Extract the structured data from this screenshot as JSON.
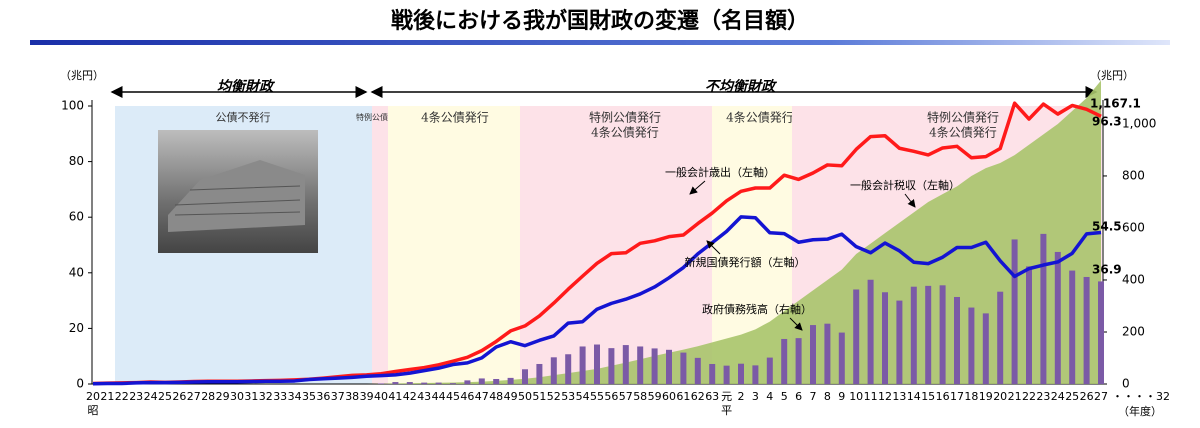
{
  "chart_data": {
    "type": "combo",
    "title": "戦後における我が国財政の変遷（名目額）",
    "left_unit": "（兆円）",
    "right_unit": "（兆円）",
    "x_unit": "（年度）",
    "era_labels": [
      "昭",
      "平"
    ],
    "axis_extension": "・・・・32",
    "periods": [
      {
        "label": "均衡財政"
      },
      {
        "label": "不均衡財政"
      }
    ],
    "bands": [
      {
        "lines": [
          "公債不発行"
        ]
      },
      {
        "lines": [
          "特例公債発行"
        ]
      },
      {
        "lines": [
          "4条公債発行"
        ]
      },
      {
        "lines": [
          "特例公債発行",
          "4条公債発行"
        ]
      },
      {
        "lines": [
          "4条公債発行"
        ]
      },
      {
        "lines": [
          "特例公債発行",
          "4条公債発行"
        ]
      }
    ],
    "categories": [
      "20",
      "21",
      "22",
      "23",
      "24",
      "25",
      "26",
      "27",
      "28",
      "29",
      "30",
      "31",
      "32",
      "33",
      "34",
      "35",
      "36",
      "37",
      "38",
      "39",
      "40",
      "41",
      "42",
      "43",
      "44",
      "45",
      "46",
      "47",
      "48",
      "49",
      "50",
      "51",
      "52",
      "53",
      "54",
      "55",
      "56",
      "57",
      "58",
      "59",
      "60",
      "61",
      "62",
      "63",
      "元",
      "2",
      "3",
      "4",
      "5",
      "6",
      "7",
      "8",
      "9",
      "10",
      "11",
      "12",
      "13",
      "14",
      "15",
      "16",
      "17",
      "18",
      "19",
      "20",
      "21",
      "22",
      "23",
      "24",
      "25",
      "26",
      "27"
    ],
    "ylim": [
      0,
      100
    ],
    "yticks": [
      0,
      20,
      40,
      60,
      80,
      100
    ],
    "y2lim": [
      0,
      1069
    ],
    "y2ticks": [
      0,
      200,
      400,
      600,
      800,
      {
        "value": 1000,
        "label": "1,000"
      }
    ],
    "series": [
      {
        "name": "一般会計歳出（左軸）",
        "type": "line",
        "color": "#ff1a1a",
        "values": [
          0.2,
          0.3,
          0.4,
          0.5,
          0.7,
          0.6,
          0.7,
          0.9,
          1.0,
          1.0,
          1.0,
          1.1,
          1.2,
          1.3,
          1.5,
          1.7,
          2.1,
          2.6,
          3.1,
          3.3,
          3.7,
          4.5,
          5.2,
          5.9,
          6.9,
          8.2,
          9.6,
          12.0,
          15.3,
          19.1,
          20.9,
          24.5,
          29.1,
          34.1,
          38.8,
          43.4,
          46.9,
          47.2,
          50.6,
          51.5,
          53.0,
          53.6,
          57.7,
          61.5,
          65.9,
          69.3,
          70.5,
          70.5,
          75.1,
          73.6,
          75.9,
          78.8,
          78.5,
          84.4,
          89.0,
          89.3,
          84.8,
          83.7,
          82.4,
          84.9,
          85.5,
          81.4,
          81.8,
          84.7,
          101.0,
          95.3,
          100.7,
          97.1,
          100.2,
          98.8,
          96.3
        ]
      },
      {
        "name": "一般会計税収（左軸）",
        "type": "line",
        "color": "#1414d2",
        "values": [
          0.1,
          0.2,
          0.2,
          0.4,
          0.5,
          0.5,
          0.6,
          0.7,
          0.8,
          0.8,
          0.8,
          0.9,
          1.0,
          1.0,
          1.1,
          1.6,
          1.9,
          2.1,
          2.4,
          2.8,
          3.0,
          3.3,
          3.9,
          4.8,
          5.7,
          7.0,
          7.6,
          9.4,
          13.3,
          15.2,
          13.8,
          15.7,
          17.3,
          21.9,
          22.4,
          26.9,
          29.0,
          30.5,
          32.4,
          34.9,
          38.2,
          41.9,
          46.8,
          50.8,
          54.9,
          60.1,
          59.8,
          54.4,
          54.1,
          51.0,
          51.9,
          52.1,
          53.9,
          49.4,
          47.2,
          50.7,
          47.9,
          43.8,
          43.3,
          45.6,
          49.1,
          49.1,
          51.0,
          44.3,
          38.7,
          41.5,
          42.8,
          43.9,
          47.0,
          54.0,
          54.5
        ]
      },
      {
        "name": "新規国債発行額（左軸）",
        "type": "bar",
        "color": "#7b5aa6",
        "values": [
          null,
          null,
          null,
          null,
          null,
          null,
          null,
          null,
          null,
          null,
          null,
          null,
          null,
          null,
          null,
          null,
          null,
          null,
          null,
          null,
          0.2,
          0.7,
          0.7,
          0.5,
          0.5,
          0.3,
          1.3,
          2.0,
          1.8,
          2.2,
          5.3,
          7.2,
          9.6,
          10.7,
          13.5,
          14.2,
          12.9,
          14.0,
          13.5,
          12.8,
          12.3,
          11.3,
          9.4,
          7.2,
          6.6,
          7.3,
          6.7,
          9.5,
          16.2,
          16.5,
          21.2,
          21.7,
          18.5,
          34.0,
          37.5,
          33.0,
          30.0,
          35.0,
          35.3,
          35.5,
          31.3,
          27.5,
          25.4,
          33.2,
          52.0,
          42.3,
          54.0,
          47.5,
          40.8,
          38.5,
          36.9
        ]
      },
      {
        "name": "政府債務残高（右軸）",
        "type": "area",
        "axis": "y2",
        "color": "#a9c46c",
        "values": [
          0,
          0,
          0,
          0,
          0,
          0,
          0,
          0,
          0,
          0,
          0,
          0,
          0,
          0,
          0,
          0,
          0,
          0,
          0,
          0,
          1,
          2,
          3,
          4,
          5,
          6,
          7,
          9,
          12,
          16,
          20,
          26,
          34,
          42,
          50,
          58,
          70,
          82,
          95,
          108,
          120,
          132,
          145,
          160,
          175,
          190,
          210,
          240,
          280,
          320,
          360,
          400,
          440,
          500,
          540,
          580,
          620,
          660,
          700,
          730,
          760,
          800,
          830,
          850,
          880,
          920,
          960,
          1000,
          1050,
          1100,
          1167.1
        ],
        "value_labels": [
          null,
          null,
          null,
          null,
          null,
          null,
          null,
          null,
          null,
          null,
          null,
          null,
          null,
          null,
          null,
          null,
          null,
          null,
          null,
          null,
          null,
          null,
          null,
          null,
          null,
          null,
          null,
          null,
          null,
          null,
          null,
          null,
          null,
          null,
          null,
          null,
          null,
          null,
          null,
          null,
          null,
          null,
          null,
          null,
          null,
          null,
          null,
          null,
          null,
          null,
          null,
          null,
          null,
          null,
          null,
          null,
          null,
          null,
          null,
          null,
          null,
          null,
          null,
          null,
          null,
          null,
          null,
          null,
          null,
          null,
          "1,167.1"
        ]
      }
    ]
  }
}
